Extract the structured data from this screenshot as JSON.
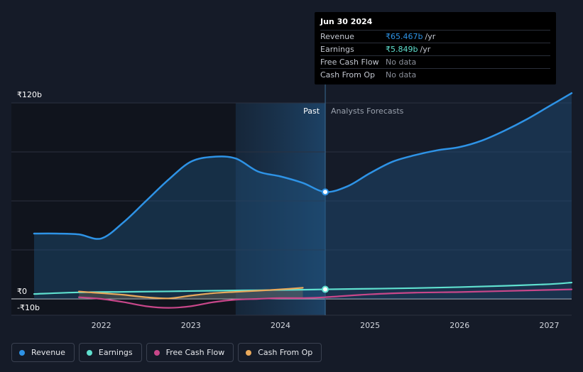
{
  "colors": {
    "revenue": "#2e93e6",
    "earnings": "#5fe0cf",
    "free_cash_flow": "#c8478a",
    "cash_from_op": "#e9a95b"
  },
  "tooltip": {
    "date": "Jun 30 2024",
    "rows": [
      {
        "label": "Revenue",
        "value": "₹65.467b",
        "unit": "/yr",
        "color": "#2e93e6"
      },
      {
        "label": "Earnings",
        "value": "₹5.849b",
        "unit": "/yr",
        "color": "#5fe0cf"
      },
      {
        "label": "Free Cash Flow",
        "value": "No data",
        "unit": "",
        "color": "#8a8f99"
      },
      {
        "label": "Cash From Op",
        "value": "No data",
        "unit": "",
        "color": "#8a8f99"
      }
    ]
  },
  "chart_data": {
    "type": "line",
    "title": "",
    "xlabel": "",
    "ylabel": "",
    "ylim": [
      -10,
      120
    ],
    "xlim": [
      2021.25,
      2027.25
    ],
    "y_tick_labels": [
      {
        "value": 120,
        "label": "₹120b"
      },
      {
        "value": 0,
        "label": "₹0"
      },
      {
        "value": -10,
        "label": "-₹10b"
      }
    ],
    "x_ticks": [
      2022,
      2023,
      2024,
      2025,
      2026,
      2027
    ],
    "x_tick_labels": [
      "2022",
      "2023",
      "2024",
      "2025",
      "2026",
      "2027"
    ],
    "past_label": "Past",
    "forecast_label": "Analysts Forecasts",
    "past_end": 2024.5,
    "shaded_start": 2023.5,
    "series": [
      {
        "name": "Revenue",
        "key": "revenue",
        "x": [
          2021.25,
          2021.5,
          2021.75,
          2022,
          2022.25,
          2022.5,
          2022.75,
          2023,
          2023.25,
          2023.5,
          2023.75,
          2024,
          2024.25,
          2024.5,
          2024.75,
          2025,
          2025.25,
          2025.5,
          2025.75,
          2026,
          2026.25,
          2026.5,
          2026.75,
          2027,
          2027.25
        ],
        "y": [
          40,
          40,
          39.5,
          37,
          47,
          60,
          73,
          84,
          87,
          86,
          78,
          75,
          71,
          65.5,
          69,
          77,
          84,
          88,
          91,
          93,
          97,
          103,
          110,
          118,
          126
        ]
      },
      {
        "name": "Earnings",
        "key": "earnings",
        "x": [
          2021.25,
          2021.75,
          2022.25,
          2022.75,
          2023.25,
          2023.75,
          2024.25,
          2024.5,
          2025,
          2025.5,
          2026,
          2026.5,
          2027,
          2027.25
        ],
        "y": [
          3,
          4,
          4.3,
          4.6,
          5,
          5.3,
          5.6,
          5.85,
          6.2,
          6.6,
          7.2,
          8,
          9,
          10
        ]
      },
      {
        "name": "Free Cash Flow",
        "key": "free_cash_flow",
        "x": [
          2021.75,
          2022,
          2022.25,
          2022.5,
          2022.75,
          2023,
          2023.25,
          2023.5,
          2023.75,
          2024,
          2024.25,
          2024.5,
          2025,
          2025.5,
          2026,
          2026.5,
          2027,
          2027.25
        ],
        "y": [
          1,
          0,
          -2,
          -4.5,
          -5.5,
          -4.5,
          -2,
          -0.5,
          0,
          0.5,
          0.5,
          1,
          2.8,
          3.8,
          4.2,
          4.8,
          5.5,
          5.8
        ]
      },
      {
        "name": "Cash From Op",
        "key": "cash_from_op",
        "x": [
          2021.75,
          2022,
          2022.25,
          2022.5,
          2022.75,
          2023,
          2023.25,
          2023.5,
          2023.75,
          2024,
          2024.25
        ],
        "y": [
          4.5,
          3.5,
          2.5,
          1,
          0.3,
          2,
          3.5,
          4.3,
          5,
          5.8,
          6.8
        ]
      }
    ],
    "markers": [
      {
        "series": "revenue",
        "x": 2024.5,
        "y": 65.467
      },
      {
        "series": "earnings",
        "x": 2024.5,
        "y": 5.849
      }
    ],
    "legend": {
      "position": "bottom-left",
      "entries": [
        "Revenue",
        "Earnings",
        "Free Cash Flow",
        "Cash From Op"
      ]
    }
  }
}
